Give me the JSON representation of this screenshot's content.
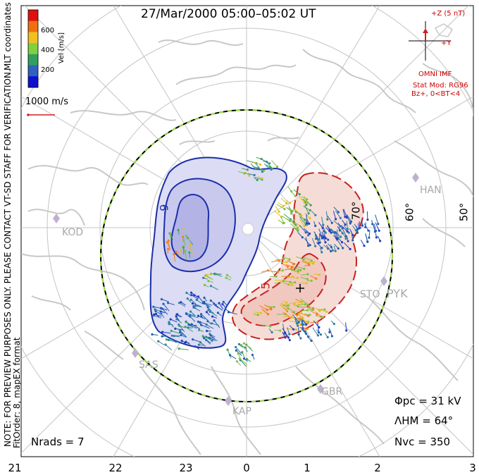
{
  "title": "27/Mar/2000 05:00–05:02 UT",
  "coords_label": "MLT coordinates",
  "colorbar": {
    "unit_label": "Vel [m/s]",
    "ticks": [
      "600",
      "400",
      "200"
    ],
    "colors": [
      "#e01010",
      "#f07010",
      "#f0c020",
      "#80d040",
      "#30a060",
      "#3060c0",
      "#1010d0"
    ]
  },
  "vector_scale_label": "1000 m/s",
  "side_notes": [
    "NOTE: FOR PREVIEW PURPOSES ONLY. PLEASE CONTACT VT-SD STAFF FOR VERIFICATION.",
    "FitOrder: 8,  mapEX format"
  ],
  "imf": {
    "z_label": "+Z (5 nT)",
    "y_label": "+Y",
    "source": "OMNI IMF",
    "model_line1": "Stat Mod: RG96",
    "model_line2": "Bz+, 0<BT<4"
  },
  "latitude_labels": [
    "70°",
    "60°",
    "50°"
  ],
  "contour_labels": [
    "-9",
    "5"
  ],
  "stations": [
    "HAN",
    "KOD",
    "STO",
    "PYK",
    "SAS",
    "KAP",
    "GBR"
  ],
  "stats": {
    "phi_pc": "Φpc = 31 kV",
    "lambda_hm": "ΛHM = 64°",
    "n_vc": "Nvc = 350",
    "n_rads": "Nrads = 7"
  },
  "mlt_labels": [
    "21",
    "22",
    "23",
    "0",
    "1",
    "2",
    "3"
  ]
}
